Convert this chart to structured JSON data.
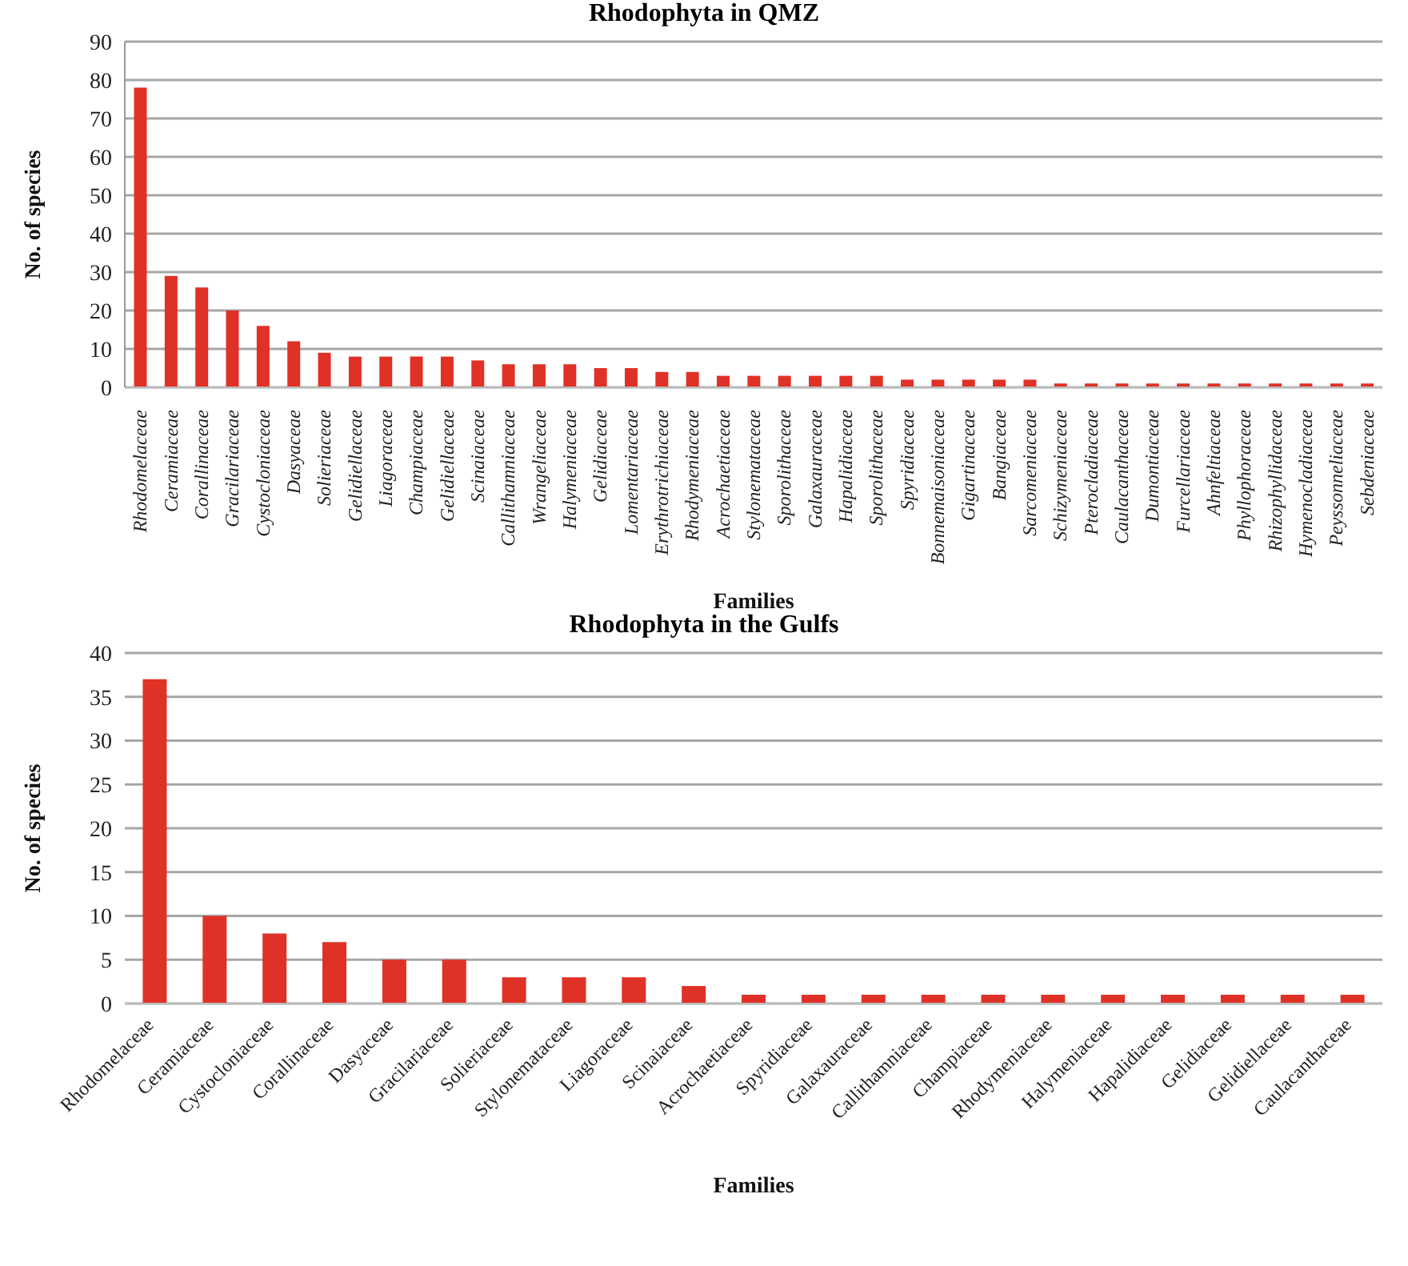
{
  "chart_data": [
    {
      "type": "bar",
      "title": "Rhodophyta in QMZ",
      "xlabel": "Families",
      "ylabel": "No. of species",
      "categories": [
        "Rhodomelaceae",
        "Ceramiaceae",
        "Corallinaceae",
        "Gracilariaceae",
        "Cystocloniaceae",
        "Dasyaceae",
        "Solieriaceae",
        "Gelidiellaceae",
        "Liagoraceae",
        "Champiaceae",
        "Gelidiellaceae",
        "Scinaiaceae",
        "Callithamniaceae",
        "Wrangeliaceae",
        "Halymeniaceae",
        "Gelidiaceae",
        "Lomentariaceae",
        "Erythrotrichiaceae",
        "Rhodymeniaceae",
        "Acrochaetiaceae",
        "Stylonemataceae",
        "Sporolithaceae",
        "Galaxauraceae",
        "Hapalidiaceae",
        "Sporolithaceae",
        "Spyridiaceae",
        "Bonnemaisoniaceae",
        "Gigartinaceae",
        "Bangiaceae",
        "Sarcomeniaceae",
        "Schizymeniaceae",
        "Pterocladiaceae",
        "Caulacanthaceae",
        "Dumontiaceae",
        "Furcellariaceae",
        "Ahnfeltiaceae",
        "Phyllophoraceae",
        "Rhizophyllidaceae",
        "Hymenocladiaceae",
        "Peyssonneliaceae",
        "Sebdeniaceae"
      ],
      "values": [
        78,
        29,
        26,
        20,
        16,
        12,
        9,
        8,
        8,
        8,
        8,
        7,
        6,
        6,
        6,
        5,
        5,
        4,
        4,
        3,
        3,
        3,
        3,
        3,
        3,
        2,
        2,
        2,
        2,
        2,
        1,
        1,
        1,
        1,
        1,
        1,
        1,
        1,
        1,
        1,
        1
      ],
      "color": "#e03127",
      "ylim": [
        0,
        90
      ],
      "yticks": [
        0,
        10,
        20,
        30,
        40,
        50,
        60,
        70,
        80,
        90
      ],
      "grid": "y"
    },
    {
      "type": "bar",
      "title": "Rhodophyta in the Gulfs",
      "xlabel": "Families",
      "ylabel": "No. of species",
      "categories": [
        "Rhodomelaceae",
        "Ceramiaceae",
        "Cystocloniaceae",
        "Corallinaceae",
        "Dasyaceae",
        "Gracilariaceae",
        "Solieriaceae",
        "Stylonemataceae",
        "Liagoraceae",
        "Scinaiaceae",
        "Acrochaetiaceae",
        "Spyridiaceae",
        "Galaxauraceae",
        "Callithamniaceae",
        "Champiaceae",
        "Rhodymeniaceae",
        "Halymeniaceae",
        "Hapalidiaceae",
        "Gelidiaceae",
        "Gelidiellaceae",
        "Caulacanthaceae"
      ],
      "values": [
        37,
        10,
        8,
        7,
        5,
        5,
        3,
        3,
        3,
        2,
        1,
        1,
        1,
        1,
        1,
        1,
        1,
        1,
        1,
        1,
        1
      ],
      "color": "#e03127",
      "ylim": [
        0,
        40
      ],
      "yticks": [
        0,
        5,
        10,
        15,
        20,
        25,
        30,
        35,
        40
      ],
      "grid": "y"
    }
  ]
}
